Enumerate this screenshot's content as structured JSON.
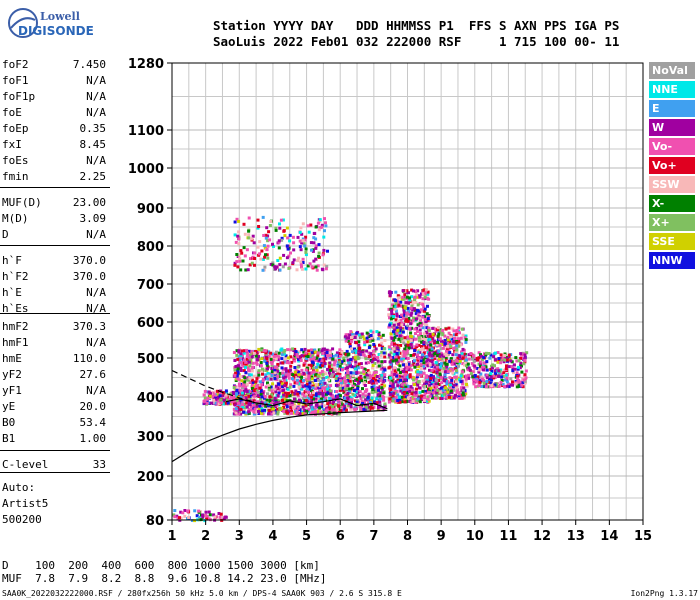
{
  "logo": {
    "line1": "Lowell",
    "line2": "DIGISONDE"
  },
  "header": {
    "line1": "Station YYYY DAY   DDD HHMMSS P1  FFS S AXN PPS IGA PS",
    "line2": "SaoLuis 2022 Feb01 032 222000 RSF     1 715 100 00- 11"
  },
  "params": [
    {
      "k": "foF2",
      "v": "7.450"
    },
    {
      "k": "foF1",
      "v": "N/A"
    },
    {
      "k": "foF1p",
      "v": "N/A"
    },
    {
      "k": "foE",
      "v": "N/A"
    },
    {
      "k": "foEp",
      "v": "0.35"
    },
    {
      "k": "fxI",
      "v": "8.45"
    },
    {
      "k": "foEs",
      "v": "N/A"
    },
    {
      "k": "fmin",
      "v": "2.25"
    },
    {
      "k": "MUF(D)",
      "v": "23.00"
    },
    {
      "k": "M(D)",
      "v": "3.09"
    },
    {
      "k": "D",
      "v": "N/A"
    },
    {
      "k": "h`F",
      "v": "370.0"
    },
    {
      "k": "h`F2",
      "v": "370.0"
    },
    {
      "k": "h`E",
      "v": "N/A"
    },
    {
      "k": "h`Es",
      "v": "N/A"
    },
    {
      "k": "hmF2",
      "v": "370.3"
    },
    {
      "k": "hmF1",
      "v": "N/A"
    },
    {
      "k": "hmE",
      "v": "110.0"
    },
    {
      "k": "yF2",
      "v": "27.6"
    },
    {
      "k": "yF1",
      "v": "N/A"
    },
    {
      "k": "yE",
      "v": "20.0"
    },
    {
      "k": "B0",
      "v": "53.4"
    },
    {
      "k": "B1",
      "v": "1.00"
    },
    {
      "k": "C-level",
      "v": "33"
    }
  ],
  "auto": [
    "Auto:",
    "Artist5",
    "500200"
  ],
  "legend": [
    {
      "label": "NoVal",
      "color": "#a0a0a0"
    },
    {
      "label": "NNE",
      "color": "#00e8e8"
    },
    {
      "label": "E",
      "color": "#40a0f0"
    },
    {
      "label": "W",
      "color": "#a000a0"
    },
    {
      "label": "Vo-",
      "color": "#f050b0"
    },
    {
      "label": "Vo+",
      "color": "#e00020"
    },
    {
      "label": "SSW",
      "color": "#f8b8b8"
    },
    {
      "label": "X-",
      "color": "#008000"
    },
    {
      "label": "X+",
      "color": "#80c060"
    },
    {
      "label": "SSE",
      "color": "#d0d000"
    },
    {
      "label": "NNW",
      "color": "#1010e0"
    }
  ],
  "muf_table": {
    "d_line": "D    100  200  400  600  800 1000 1500 3000 [km]",
    "muf_line": "MUF  7.8  7.9  8.2  8.8  9.6 10.8 14.2 23.0 [MHz]"
  },
  "footer": {
    "left": "SAA0K_2022032222000.RSF / 280fx256h 50 kHz 5.0 km / DPS-4 SAA0K 903 / 2.6 S 315.8 E",
    "right": "Ion2Png 1.3.17"
  },
  "chart_data": {
    "type": "scatter",
    "x_ticks": [
      1,
      2,
      3,
      4,
      5,
      6,
      7,
      8,
      9,
      10,
      11,
      12,
      13,
      14,
      15
    ],
    "y_ticks": [
      80,
      200,
      300,
      400,
      500,
      600,
      700,
      800,
      900,
      1000,
      1100,
      1280
    ],
    "xlim": [
      1,
      15
    ],
    "ylim": [
      80,
      1280
    ],
    "y_scale": "nonlinear",
    "grid": true,
    "legend_placement": "right",
    "trace_curve": {
      "x": [
        1.0,
        1.5,
        2.0,
        2.5,
        3.0,
        3.5,
        4.0,
        4.5,
        5.0,
        5.5,
        6.0,
        6.5,
        7.0,
        7.4
      ],
      "y": [
        236,
        262,
        285,
        302,
        318,
        330,
        340,
        348,
        354,
        357,
        360,
        362,
        364,
        366
      ]
    },
    "dashed_curve": {
      "x": [
        1.0,
        1.5,
        2.0,
        2.5,
        3.0,
        3.4
      ],
      "y": [
        468,
        448,
        428,
        412,
        398,
        388
      ]
    },
    "virtual_curve": {
      "x": [
        2.6,
        3.0,
        3.5,
        4.0,
        4.5,
        5.0,
        5.5,
        6.0,
        6.5,
        7.0,
        7.4
      ],
      "y": [
        388,
        395,
        385,
        378,
        390,
        382,
        388,
        395,
        378,
        384,
        370
      ]
    },
    "clusters": [
      {
        "fx": [
          1.9,
          3.3
        ],
        "hy": [
          385,
          420
        ],
        "n": 220
      },
      {
        "fx": [
          2.8,
          6.1
        ],
        "hy": [
          360,
          530
        ],
        "n": 1400
      },
      {
        "fx": [
          6.1,
          7.3
        ],
        "hy": [
          370,
          580
        ],
        "n": 500
      },
      {
        "fx": [
          7.4,
          8.6
        ],
        "hy": [
          390,
          690
        ],
        "n": 800
      },
      {
        "fx": [
          8.6,
          9.7
        ],
        "hy": [
          400,
          590
        ],
        "n": 500
      },
      {
        "fx": [
          9.7,
          11.5
        ],
        "hy": [
          430,
          520
        ],
        "n": 300
      },
      {
        "fx": [
          2.8,
          5.6
        ],
        "hy": [
          740,
          880
        ],
        "n": 220
      },
      {
        "fx": [
          1.0,
          2.6
        ],
        "hy": [
          82,
          110
        ],
        "n": 60
      }
    ]
  }
}
